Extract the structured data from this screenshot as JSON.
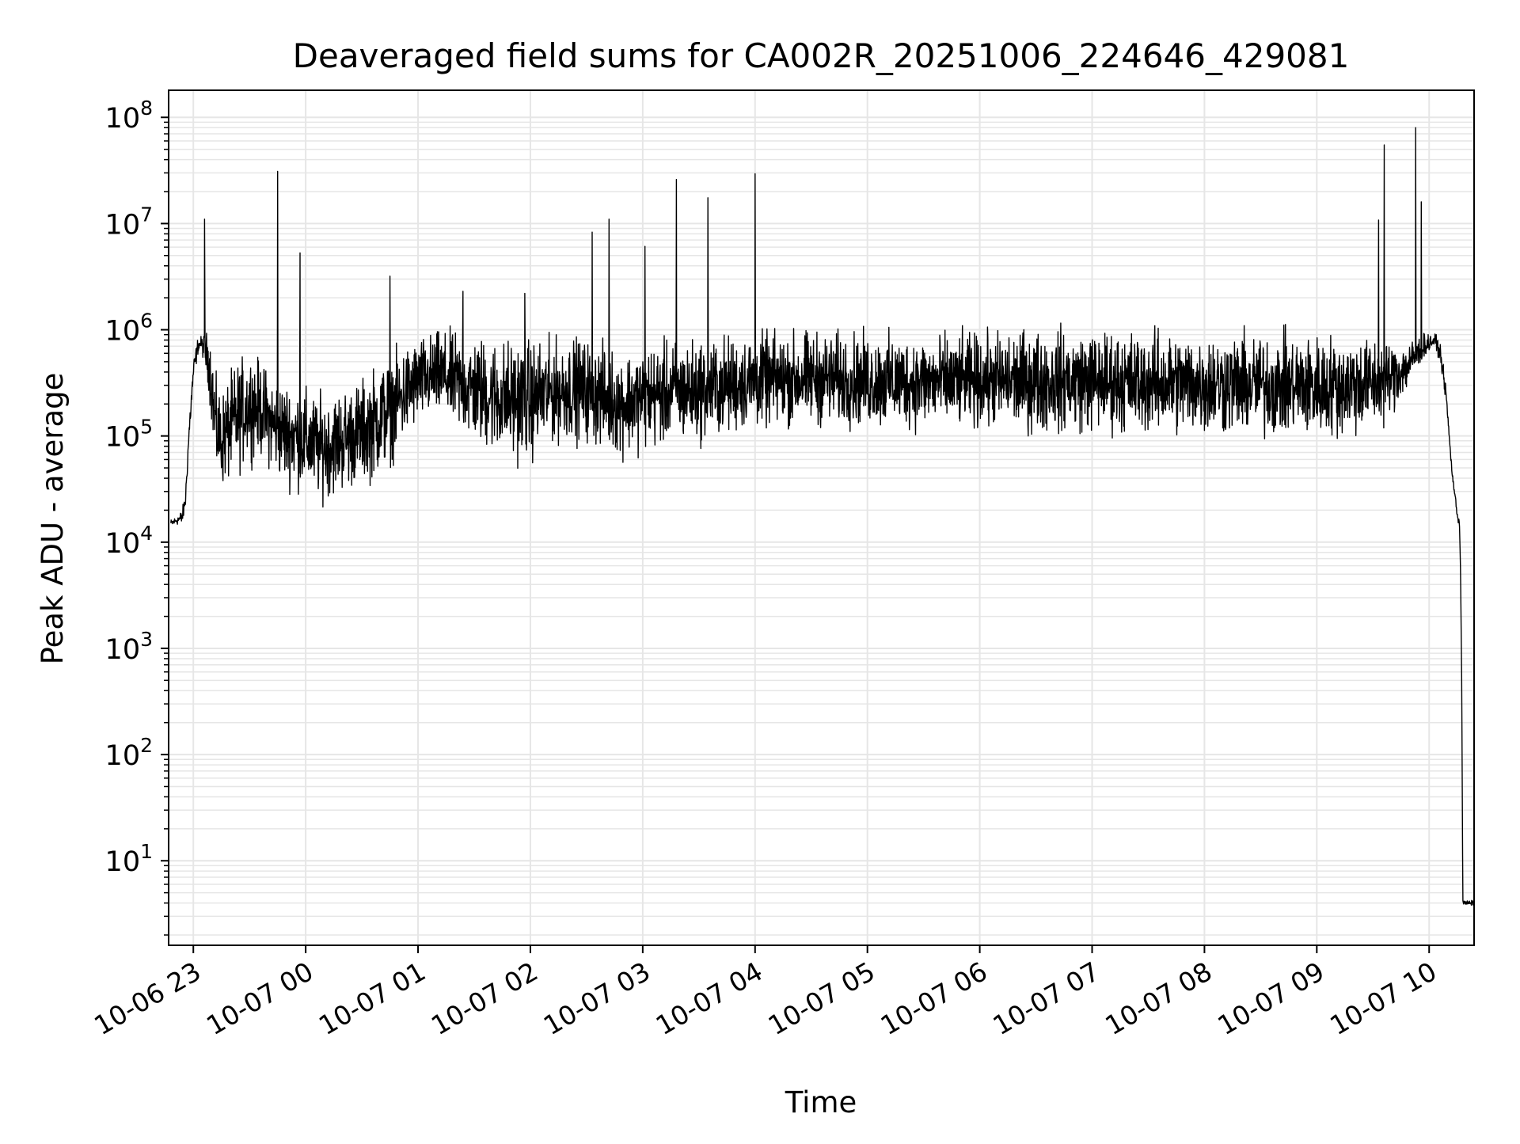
{
  "chart_data": {
    "type": "line",
    "title": "Deaveraged field sums for CA002R_20251006_224646_429081",
    "xlabel": "Time",
    "ylabel": "Peak ADU - average",
    "yscale": "log",
    "ylim": [
      1.6,
      180000000
    ],
    "xlim_hours": [
      -1.22,
      10.4
    ],
    "x_ticks": [
      {
        "hour": -1,
        "label": "10-06 23"
      },
      {
        "hour": 0,
        "label": "10-07 00"
      },
      {
        "hour": 1,
        "label": "10-07 01"
      },
      {
        "hour": 2,
        "label": "10-07 02"
      },
      {
        "hour": 3,
        "label": "10-07 03"
      },
      {
        "hour": 4,
        "label": "10-07 04"
      },
      {
        "hour": 5,
        "label": "10-07 05"
      },
      {
        "hour": 6,
        "label": "10-07 06"
      },
      {
        "hour": 7,
        "label": "10-07 07"
      },
      {
        "hour": 8,
        "label": "10-07 08"
      },
      {
        "hour": 9,
        "label": "10-07 09"
      },
      {
        "hour": 10,
        "label": "10-07 10"
      }
    ],
    "y_ticks": [
      {
        "value": 10,
        "base": "10",
        "exp": "1"
      },
      {
        "value": 100,
        "base": "10",
        "exp": "2"
      },
      {
        "value": 1000,
        "base": "10",
        "exp": "3"
      },
      {
        "value": 10000,
        "base": "10",
        "exp": "4"
      },
      {
        "value": 100000,
        "base": "10",
        "exp": "5"
      },
      {
        "value": 1000000,
        "base": "10",
        "exp": "6"
      },
      {
        "value": 10000000,
        "base": "10",
        "exp": "7"
      },
      {
        "value": 100000000,
        "base": "10",
        "exp": "8"
      }
    ],
    "grid": true,
    "series": [
      {
        "name": "deaveraged field sum",
        "color": "#000000",
        "x_hours": [
          -1.2,
          -1.15,
          -1.1,
          -1.07,
          -1.04,
          -1.0,
          -0.96,
          -0.93,
          -0.9,
          -0.86,
          -0.83,
          -0.8,
          -0.75,
          -0.7,
          -0.6,
          -0.5,
          -0.4,
          -0.3,
          -0.2,
          -0.1,
          0.0,
          0.1,
          0.2,
          0.3,
          0.4,
          0.5,
          0.6,
          0.7,
          0.8,
          0.9,
          1.0,
          1.2,
          1.4,
          1.6,
          1.8,
          2.0,
          2.2,
          2.4,
          2.6,
          2.8,
          3.0,
          3.2,
          3.5,
          4.0,
          4.5,
          5.0,
          5.5,
          6.0,
          6.5,
          7.0,
          7.5,
          8.0,
          8.5,
          9.0,
          9.3,
          9.6,
          9.8,
          9.95,
          10.05,
          10.1,
          10.15,
          10.2,
          10.25,
          10.27,
          10.28,
          10.29,
          10.3,
          10.35,
          10.4
        ],
        "y_center": [
          15000,
          16000,
          17000,
          25000,
          100000,
          400000,
          700000,
          750000,
          650000,
          500000,
          250000,
          120000,
          90000,
          110000,
          150000,
          200000,
          180000,
          130000,
          110000,
          100000,
          90000,
          80000,
          80000,
          90000,
          100000,
          110000,
          130000,
          160000,
          200000,
          260000,
          330000,
          380000,
          300000,
          250000,
          220000,
          220000,
          260000,
          280000,
          250000,
          200000,
          230000,
          250000,
          270000,
          330000,
          350000,
          330000,
          320000,
          330000,
          330000,
          330000,
          320000,
          310000,
          300000,
          290000,
          300000,
          320000,
          450000,
          700000,
          800000,
          600000,
          250000,
          50000,
          18000,
          15000,
          5000,
          500,
          4,
          4,
          4
        ],
        "spread_decades": [
          0.05,
          0.05,
          0.1,
          0.1,
          0.15,
          0.15,
          0.1,
          0.08,
          0.2,
          0.35,
          0.5,
          0.55,
          0.55,
          0.6,
          0.65,
          0.6,
          0.55,
          0.55,
          0.6,
          0.6,
          0.6,
          0.6,
          0.6,
          0.6,
          0.6,
          0.6,
          0.65,
          0.65,
          0.6,
          0.55,
          0.5,
          0.5,
          0.6,
          0.65,
          0.7,
          0.7,
          0.6,
          0.6,
          0.6,
          0.6,
          0.6,
          0.6,
          0.6,
          0.55,
          0.55,
          0.55,
          0.55,
          0.55,
          0.6,
          0.6,
          0.6,
          0.6,
          0.6,
          0.6,
          0.6,
          0.5,
          0.3,
          0.15,
          0.08,
          0.1,
          0.1,
          0.05,
          0.05,
          0.05,
          0.05,
          0.0,
          0.03,
          0.03,
          0.03
        ],
        "spikes": [
          {
            "hour": -0.9,
            "value": 11000000
          },
          {
            "hour": -0.25,
            "value": 31000000
          },
          {
            "hour": -0.05,
            "value": 5300000
          },
          {
            "hour": 0.75,
            "value": 3200000
          },
          {
            "hour": 1.4,
            "value": 2300000
          },
          {
            "hour": 1.95,
            "value": 2200000
          },
          {
            "hour": 2.55,
            "value": 8300000
          },
          {
            "hour": 2.7,
            "value": 11000000
          },
          {
            "hour": 3.02,
            "value": 6100000
          },
          {
            "hour": 3.3,
            "value": 26000000
          },
          {
            "hour": 3.58,
            "value": 17500000
          },
          {
            "hour": 4.0,
            "value": 29500000
          },
          {
            "hour": 9.55,
            "value": 10800000
          },
          {
            "hour": 9.6,
            "value": 55000000
          },
          {
            "hour": 9.88,
            "value": 80000000
          },
          {
            "hour": 9.93,
            "value": 16000000
          }
        ]
      }
    ]
  }
}
